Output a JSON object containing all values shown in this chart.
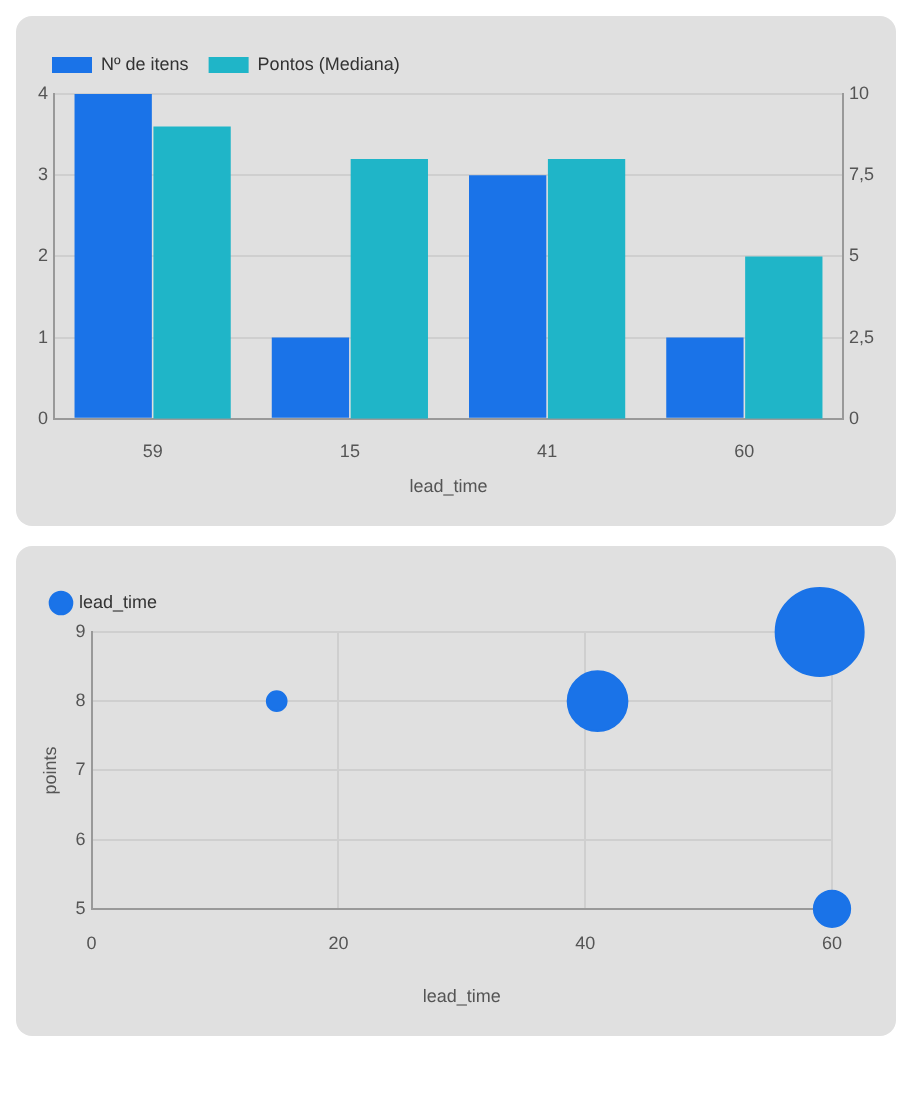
{
  "chart_data": [
    {
      "type": "bar",
      "categories": [
        "59",
        "15",
        "41",
        "60"
      ],
      "xlabel": "lead_time",
      "series": [
        {
          "name": "Nº de itens",
          "color": "#1a73e8",
          "values": [
            4,
            1,
            3,
            1
          ]
        },
        {
          "name": "Pontos (Mediana)",
          "color": "#1fb5c8",
          "values": [
            9,
            8,
            8,
            5
          ],
          "axis": "y2"
        }
      ],
      "ylim": [
        0,
        4
      ],
      "yticks": [
        0,
        1,
        2,
        3,
        4
      ],
      "y2lim": [
        0,
        10
      ],
      "y2ticks": [
        0,
        {
          "value": 2.5,
          "label": "2,5"
        },
        5,
        {
          "value": 7.5,
          "label": "7,5"
        },
        10
      ],
      "grid": "y",
      "legend": "top left"
    },
    {
      "type": "bubble",
      "xlabel": "lead_time",
      "ylabel": "points",
      "series": [
        {
          "name": "lead_time",
          "color": "#1a73e8",
          "x": [
            15,
            41,
            59,
            60
          ],
          "values": [
            8,
            8,
            9,
            5
          ],
          "sizes": [
            0.05,
            0.46,
            1,
            0.17
          ]
        }
      ],
      "xlim": [
        0,
        60
      ],
      "xticks": [
        0,
        20,
        40,
        60
      ],
      "ylim": [
        5,
        9
      ],
      "yticks": [
        5,
        6,
        7,
        8,
        9
      ],
      "grid": true,
      "legend": "top left"
    }
  ]
}
